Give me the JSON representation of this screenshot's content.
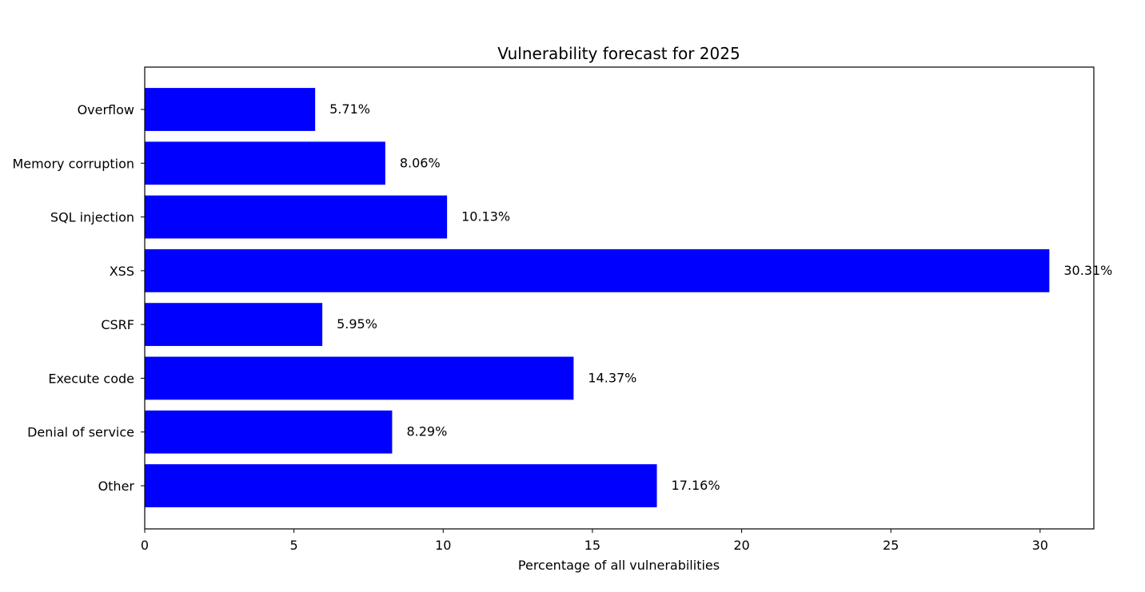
{
  "chart_data": {
    "type": "bar",
    "orientation": "horizontal",
    "title": "Vulnerability forecast for 2025",
    "xlabel": "Percentage of all vulnerabilities",
    "ylabel": "",
    "categories": [
      "Overflow",
      "Memory corruption",
      "SQL injection",
      "XSS",
      "CSRF",
      "Execute code",
      "Denial of service",
      "Other"
    ],
    "values": [
      5.71,
      8.06,
      10.13,
      30.31,
      5.95,
      14.37,
      8.29,
      17.16
    ],
    "value_labels": [
      "5.71%",
      "8.06%",
      "10.13%",
      "30.31%",
      "5.95%",
      "14.37%",
      "8.29%",
      "17.16%"
    ],
    "xlim": [
      0,
      31.8
    ],
    "xticks": [
      0,
      5,
      10,
      15,
      20,
      25,
      30
    ],
    "xtick_labels": [
      "0",
      "5",
      "10",
      "15",
      "20",
      "25",
      "30"
    ],
    "grid": false,
    "bar_color": "#0000ff"
  }
}
